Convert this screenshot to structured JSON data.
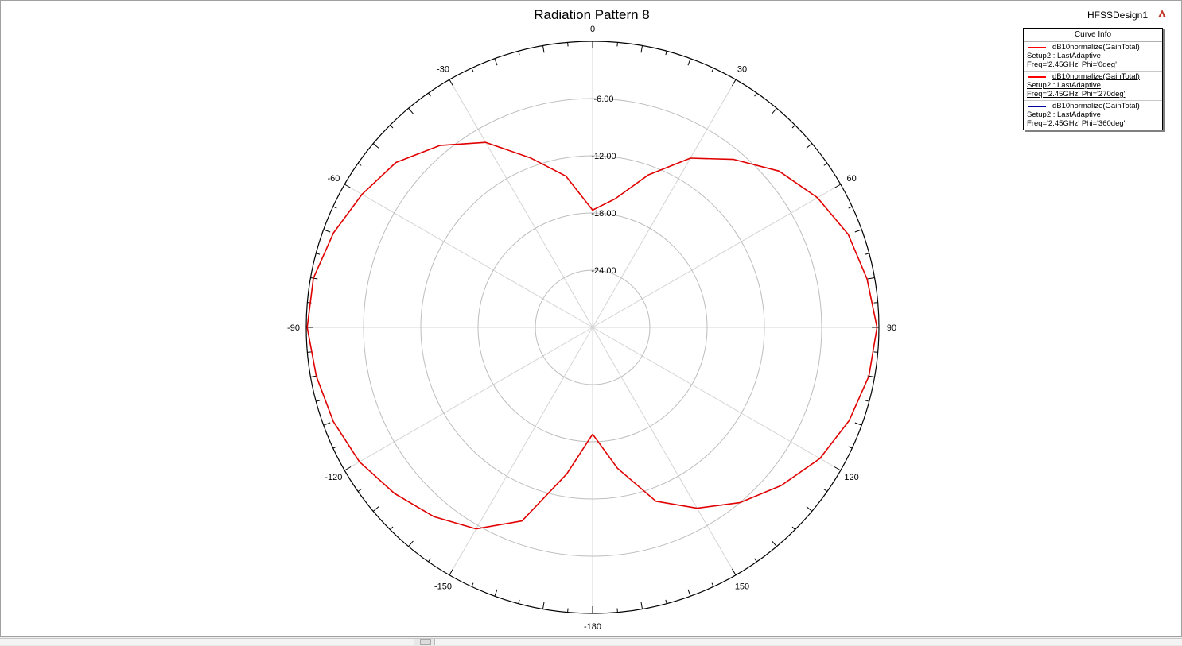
{
  "window": {
    "design_name": "HFSSDesign1",
    "logo_icon": "ansys-logo-icon"
  },
  "chart_data": {
    "type": "polar-line",
    "title": "Radiation Pattern 8",
    "angle_unit": "deg",
    "angle_zero": "top",
    "angle_direction": "clockwise",
    "angle_ticks": [
      0,
      30,
      60,
      90,
      120,
      150,
      -180,
      -150,
      -120,
      -90,
      -60,
      -30
    ],
    "radial_range": [
      -30,
      0
    ],
    "radial_ticks": [
      -6,
      -12,
      -18,
      -24
    ],
    "radial_tick_labels": [
      "-6.00",
      "-12.00",
      "-18.00",
      "-24.00"
    ],
    "grid": true,
    "legend": {
      "title": "Curve Info",
      "placement": "top-right",
      "entries": [
        {
          "expr": "dB10normalize(GainTotal)",
          "setup": "Setup2 : LastAdaptive",
          "params": "Freq='2.45GHz' Phi='0deg'",
          "color": "#ff0000",
          "selected": false
        },
        {
          "expr": "dB10normalize(GainTotal)",
          "setup": "Setup2 : LastAdaptive",
          "params": "Freq='2.45GHz' Phi='270deg'",
          "color": "#ff0000",
          "selected": true
        },
        {
          "expr": "dB10normalize(GainTotal)",
          "setup": "Setup2 : LastAdaptive",
          "params": "Freq='2.45GHz' Phi='360deg'",
          "color": "#0000a0",
          "selected": false
        }
      ]
    },
    "series": [
      {
        "color": "#e00000",
        "theta": [
          -180,
          -170,
          -160,
          -150,
          -140,
          -130,
          -120,
          -110,
          -100,
          -90,
          -80,
          -70,
          -60,
          -50,
          -40,
          -30,
          -20,
          -10,
          0,
          10,
          20,
          30,
          40,
          50,
          60,
          70,
          80,
          90,
          100,
          110,
          120,
          130,
          140,
          150,
          160,
          170,
          180
        ],
        "gain_db": [
          -18.8,
          -14.4,
          -8.4,
          -5.6,
          -4.1,
          -2.9,
          -1.8,
          -1.1,
          -0.6,
          -0.1,
          -0.3,
          -1.1,
          -2.1,
          -3.1,
          -5.1,
          -7.6,
          -11.1,
          -13.9,
          -17.7,
          -16.3,
          -13.0,
          -9.5,
          -7.0,
          -4.5,
          -2.8,
          -1.5,
          -0.8,
          -0.2,
          -0.6,
          -1.4,
          -2.5,
          -4.2,
          -6.0,
          -8.1,
          -10.6,
          -15.0,
          -18.8
        ]
      }
    ]
  }
}
